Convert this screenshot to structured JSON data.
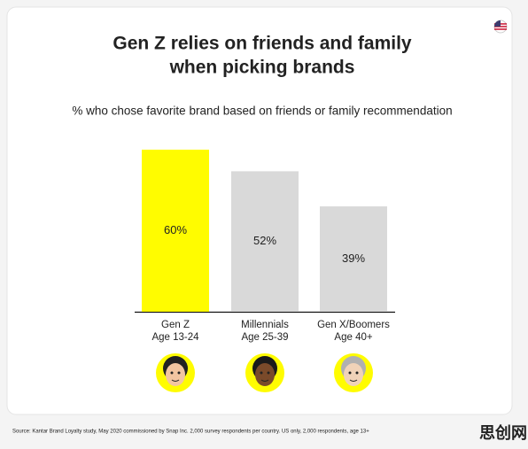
{
  "chart_data": {
    "type": "bar",
    "title": [
      "Gen Z relies on friends and family",
      "when picking brands"
    ],
    "subtitle": "% who chose favorite brand based on friends or family recommendation",
    "categories": [
      "Gen Z",
      "Millennials",
      "Gen X/Boomers"
    ],
    "category_sublabels": [
      "Age 13-24",
      "Age 25-39",
      "Age 40+"
    ],
    "values": [
      60,
      52,
      39
    ],
    "value_labels": [
      "60%",
      "52%",
      "39%"
    ],
    "colors": [
      "#fffc00",
      "#d9d9d9",
      "#d9d9d9"
    ],
    "source": "Source: Kantar Brand Loyalty study, May 2020 commissioned by Snap Inc. 2,000 survey respondents per country. US only, 2,000 respondents, age 13+",
    "watermark": "思创网"
  }
}
